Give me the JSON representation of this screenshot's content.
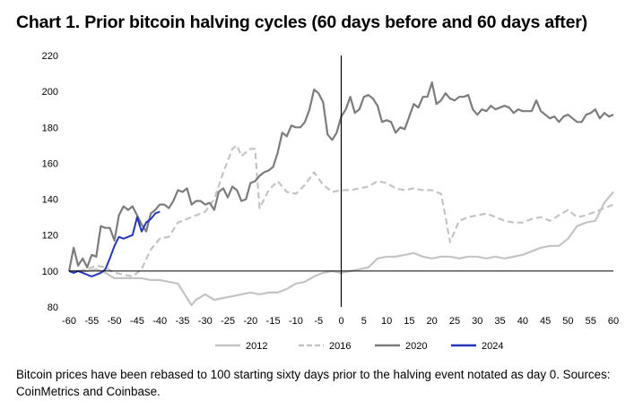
{
  "title": "Chart 1. Prior bitcoin halving cycles (60 days before and 60 days after)",
  "caption": "Bitcoin prices have been rebased to 100 starting sixty days prior to the halving event notated as day 0. Sources: CoinMetrics and Coinbase.",
  "chart_data": {
    "type": "line",
    "xlim": [
      -60,
      60
    ],
    "ylim": [
      80,
      220
    ],
    "xticks": [
      -60,
      -55,
      -50,
      -45,
      -40,
      -35,
      -30,
      -25,
      -20,
      -15,
      -10,
      -5,
      0,
      5,
      10,
      15,
      20,
      25,
      30,
      35,
      40,
      45,
      50,
      55,
      60
    ],
    "yticks": [
      80,
      100,
      120,
      140,
      160,
      180,
      200,
      220
    ],
    "baseline_y": 100,
    "vline_x": 0,
    "legend_position": "bottom",
    "series": [
      {
        "name": "2012",
        "color": "#c4c4c4",
        "dash": "solid",
        "x": [
          -60,
          -58,
          -56,
          -54,
          -52,
          -50,
          -48,
          -46,
          -44,
          -42,
          -40,
          -38,
          -36,
          -34,
          -33,
          -32,
          -30,
          -28,
          -26,
          -24,
          -22,
          -20,
          -18,
          -16,
          -14,
          -12,
          -10,
          -8,
          -6,
          -4,
          -2,
          0,
          2,
          4,
          6,
          8,
          10,
          12,
          14,
          16,
          18,
          20,
          22,
          24,
          26,
          28,
          30,
          32,
          34,
          36,
          38,
          40,
          42,
          44,
          46,
          48,
          50,
          52,
          54,
          56,
          58,
          60
        ],
        "y": [
          100,
          100,
          100,
          101,
          99,
          96,
          96,
          96,
          96,
          95,
          95,
          94,
          93,
          85,
          81,
          84,
          87,
          84,
          85,
          86,
          87,
          88,
          87,
          88,
          88,
          90,
          93,
          94,
          97,
          99,
          100,
          99,
          100,
          101,
          102,
          107,
          108,
          108,
          109,
          110,
          108,
          107,
          108,
          108,
          107,
          108,
          108,
          107,
          108,
          107,
          108,
          109,
          111,
          113,
          114,
          114,
          118,
          125,
          127,
          128,
          138,
          144
        ]
      },
      {
        "name": "2016",
        "color": "#c4c4c4",
        "dash": "dashed",
        "x": [
          -60,
          -58,
          -56,
          -54,
          -52,
          -50,
          -48,
          -46,
          -44,
          -42,
          -40,
          -38,
          -36,
          -34,
          -32,
          -30,
          -28,
          -26,
          -24,
          -23,
          -22,
          -20,
          -19,
          -18,
          -16,
          -14,
          -12,
          -10,
          -8,
          -6,
          -4,
          -2,
          0,
          2,
          4,
          6,
          8,
          10,
          12,
          14,
          16,
          18,
          20,
          22,
          23,
          24,
          26,
          28,
          30,
          32,
          34,
          36,
          38,
          40,
          42,
          44,
          46,
          48,
          50,
          52,
          54,
          56,
          58,
          60
        ],
        "y": [
          100,
          100,
          101,
          103,
          102,
          99,
          98,
          97,
          101,
          112,
          118,
          119,
          127,
          129,
          131,
          133,
          140,
          155,
          168,
          170,
          164,
          168,
          168,
          135,
          145,
          150,
          144,
          143,
          148,
          155,
          148,
          144,
          145,
          145,
          146,
          147,
          150,
          149,
          146,
          145,
          146,
          145,
          145,
          143,
          130,
          116,
          128,
          130,
          131,
          132,
          130,
          128,
          127,
          127,
          129,
          130,
          128,
          131,
          134,
          130,
          131,
          133,
          135,
          137
        ]
      },
      {
        "name": "2020",
        "color": "#7c7c7c",
        "dash": "solid",
        "x": [
          -60,
          -59,
          -58,
          -57,
          -56,
          -55,
          -54,
          -53,
          -52,
          -51,
          -50,
          -49,
          -48,
          -47,
          -46,
          -45,
          -44,
          -43,
          -42,
          -41,
          -40,
          -39,
          -38,
          -37,
          -36,
          -35,
          -34,
          -33,
          -32,
          -31,
          -30,
          -29,
          -28,
          -27,
          -26,
          -25,
          -24,
          -23,
          -22,
          -21,
          -20,
          -19,
          -18,
          -17,
          -16,
          -15,
          -14,
          -13,
          -12,
          -11,
          -10,
          -9,
          -8,
          -7,
          -6,
          -5,
          -4,
          -3,
          -2,
          -1,
          0,
          1,
          2,
          3,
          4,
          5,
          6,
          7,
          8,
          9,
          10,
          11,
          12,
          13,
          14,
          15,
          16,
          17,
          18,
          19,
          20,
          21,
          22,
          23,
          24,
          25,
          26,
          27,
          28,
          29,
          30,
          31,
          32,
          33,
          34,
          35,
          36,
          37,
          38,
          39,
          40,
          41,
          42,
          43,
          44,
          45,
          46,
          47,
          48,
          49,
          50,
          51,
          52,
          53,
          54,
          55,
          56,
          57,
          58,
          59,
          60
        ],
        "y": [
          100,
          113,
          103,
          107,
          102,
          109,
          108,
          125,
          124,
          124,
          117,
          131,
          136,
          134,
          136,
          131,
          126,
          122,
          132,
          134,
          137,
          137,
          135,
          139,
          145,
          144,
          146,
          137,
          139,
          139,
          137,
          138,
          134,
          144,
          146,
          141,
          147,
          145,
          139,
          140,
          149,
          150,
          153,
          155,
          156,
          158,
          166,
          177,
          175,
          181,
          180,
          180,
          183,
          190,
          201,
          199,
          194,
          176,
          173,
          177,
          186,
          190,
          197,
          188,
          190,
          197,
          198,
          196,
          192,
          183,
          184,
          183,
          177,
          180,
          179,
          186,
          193,
          191,
          197,
          197,
          205,
          193,
          195,
          199,
          196,
          195,
          197,
          197,
          198,
          190,
          187,
          190,
          189,
          192,
          190,
          191,
          192,
          191,
          188,
          190,
          189,
          189,
          189,
          195,
          189,
          187,
          185,
          186,
          183,
          186,
          187,
          185,
          183,
          183,
          187,
          188,
          190,
          185,
          188,
          186,
          187
        ]
      },
      {
        "name": "2024",
        "color": "#2437b8",
        "dash": "solid",
        "x": [
          -60,
          -59,
          -58,
          -57,
          -56,
          -55,
          -54,
          -53,
          -52,
          -51,
          -50,
          -49,
          -48,
          -47,
          -46,
          -45,
          -44,
          -43,
          -42,
          -41,
          -40
        ],
        "y": [
          100,
          99,
          100,
          99,
          98,
          97,
          98,
          99,
          101,
          107,
          114,
          119,
          118,
          119,
          120,
          130,
          122,
          127,
          129,
          132,
          133
        ]
      }
    ]
  }
}
